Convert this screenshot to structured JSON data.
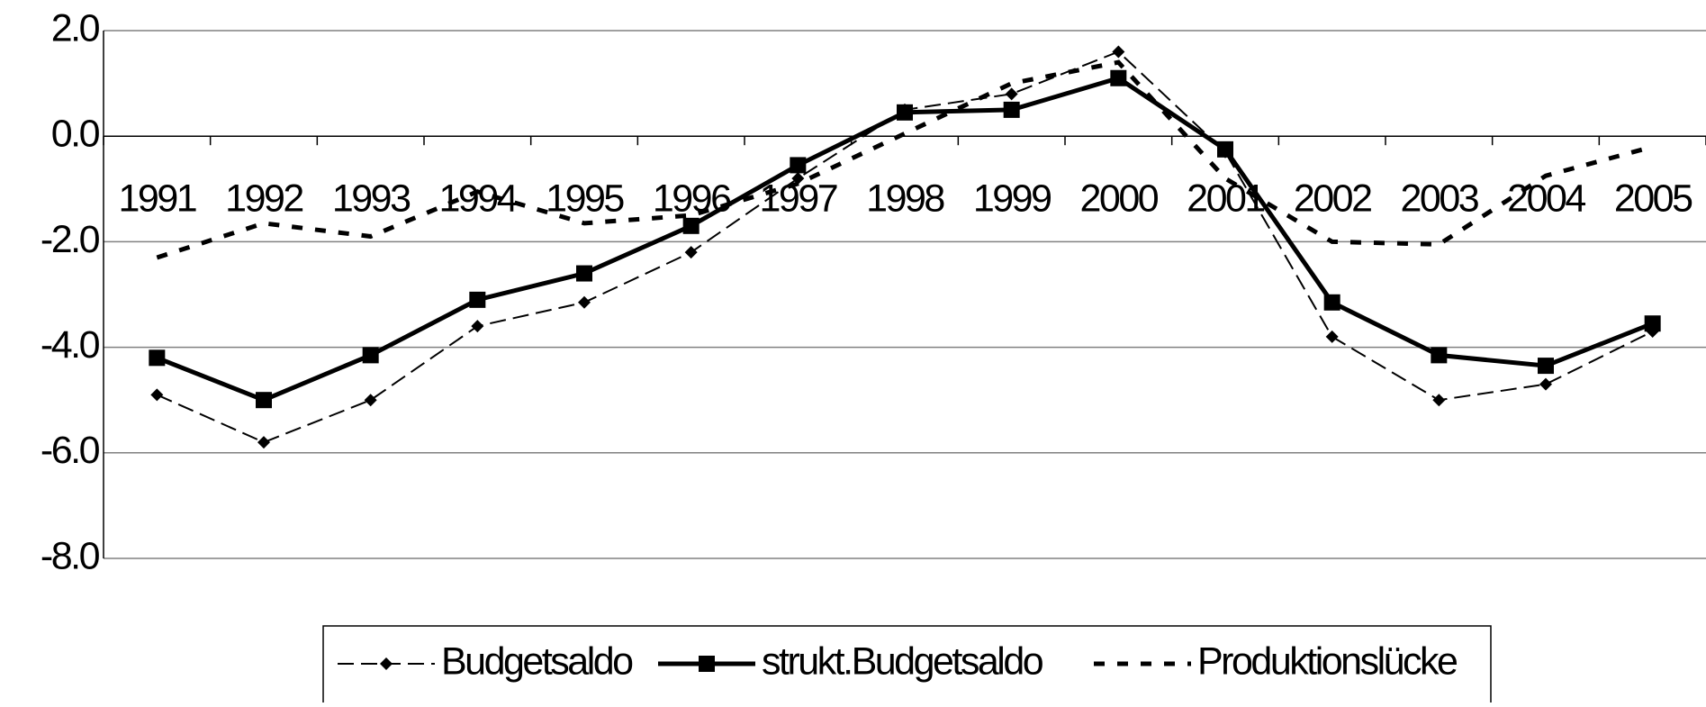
{
  "chart_data": {
    "type": "line",
    "categories": [
      "1991",
      "1992",
      "1993",
      "1994",
      "1995",
      "1996",
      "1997",
      "1998",
      "1999",
      "2000",
      "2001",
      "2002",
      "2003",
      "2004",
      "2005"
    ],
    "series": [
      {
        "name": "Budgetsaldo",
        "color": "#000000",
        "values": [
          -4.9,
          -5.8,
          -5.0,
          -3.6,
          -3.15,
          -2.2,
          -0.8,
          0.5,
          0.8,
          1.6,
          -0.3,
          -3.8,
          -5.0,
          -4.7,
          -3.7
        ]
      },
      {
        "name": "strukt.Budgetsaldo",
        "color": "#000000",
        "values": [
          -4.2,
          -5.0,
          -4.15,
          -3.1,
          -2.6,
          -1.7,
          -0.55,
          0.45,
          0.5,
          1.1,
          -0.25,
          -3.15,
          -4.15,
          -4.35,
          -3.55
        ]
      },
      {
        "name": "Produktionslücke",
        "color": "#000000",
        "values": [
          -2.3,
          -1.65,
          -1.9,
          -1.05,
          -1.65,
          -1.5,
          -0.9,
          0.05,
          1.0,
          1.4,
          -0.8,
          -2.0,
          -2.05,
          -0.75,
          -0.2
        ]
      }
    ],
    "ylim": [
      -8,
      2
    ],
    "yticks": [
      {
        "value": -8,
        "label": "-8.0"
      },
      {
        "value": -6,
        "label": "-6.0"
      },
      {
        "value": -4,
        "label": "-4.0"
      },
      {
        "value": -2,
        "label": "-2.0"
      },
      {
        "value": 0,
        "label": "0.0"
      },
      {
        "value": 2,
        "label": "2.0"
      }
    ],
    "grid": true,
    "legend": "bottom"
  }
}
